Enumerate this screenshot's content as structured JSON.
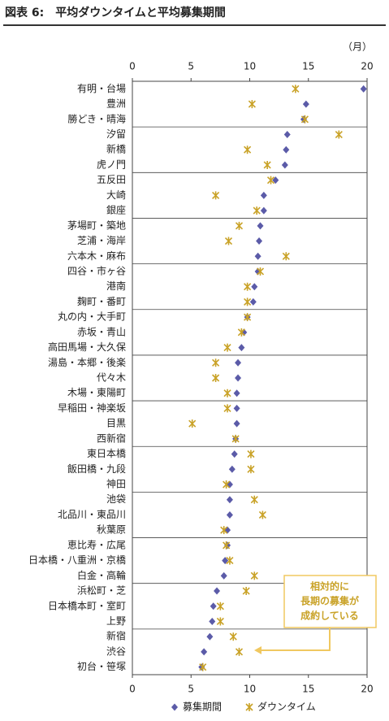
{
  "chart_data": {
    "type": "dot",
    "title": "図表 6:　平均ダウンタイムと平均募集期間",
    "unit_label": "（月）",
    "annotation": [
      "相対的に",
      "長期の募集が",
      "成約している"
    ],
    "categories": [
      "有明・台場",
      "豊洲",
      "勝どき・晴海",
      "汐留",
      "新橋",
      "虎ノ門",
      "五反田",
      "大崎",
      "銀座",
      "茅場町・築地",
      "芝浦・海岸",
      "六本木・麻布",
      "四谷・市ヶ谷",
      "港南",
      "麹町・番町",
      "丸の内・大手町",
      "赤坂・青山",
      "高田馬場・大久保",
      "湯島・本郷・後楽",
      "代々木",
      "木場・東陽町",
      "早稲田・神楽坂",
      "目黒",
      "西新宿",
      "東日本橋",
      "飯田橋・九段",
      "神田",
      "池袋",
      "北品川・東品川",
      "秋葉原",
      "恵比寿・広尾",
      "日本橋・八重洲・京橋",
      "白金・高輪",
      "浜松町・芝",
      "日本橋本町・室町",
      "上野",
      "新宿",
      "渋谷",
      "初台・笹塚"
    ],
    "series": [
      {
        "name": "募集期間",
        "color": "#5b5ba8",
        "marker": "diamond",
        "values": [
          19.7,
          14.8,
          14.6,
          13.2,
          13.1,
          13.0,
          12.2,
          11.2,
          11.2,
          10.9,
          10.8,
          10.7,
          10.7,
          10.4,
          10.3,
          9.8,
          9.5,
          9.3,
          9.0,
          9.0,
          8.9,
          8.9,
          8.9,
          8.8,
          8.7,
          8.5,
          8.3,
          8.3,
          8.3,
          8.1,
          8.1,
          7.9,
          7.8,
          7.2,
          6.9,
          6.8,
          6.6,
          6.1,
          5.9
        ]
      },
      {
        "name": "ダウンタイム",
        "color": "#c9a227",
        "marker": "star",
        "values": [
          13.9,
          10.2,
          14.7,
          17.6,
          9.8,
          11.5,
          11.8,
          7.1,
          10.6,
          9.1,
          8.2,
          13.1,
          10.9,
          9.8,
          9.8,
          9.8,
          9.3,
          8.1,
          7.1,
          7.1,
          8.1,
          8.1,
          5.1,
          8.8,
          10.1,
          10.1,
          8.0,
          10.4,
          11.1,
          7.8,
          8.0,
          8.3,
          10.4,
          9.7,
          7.5,
          7.5,
          8.6,
          9.1,
          6.0
        ]
      }
    ],
    "xlim": [
      0,
      20
    ],
    "xticks": [
      0,
      5,
      10,
      15,
      20
    ]
  }
}
